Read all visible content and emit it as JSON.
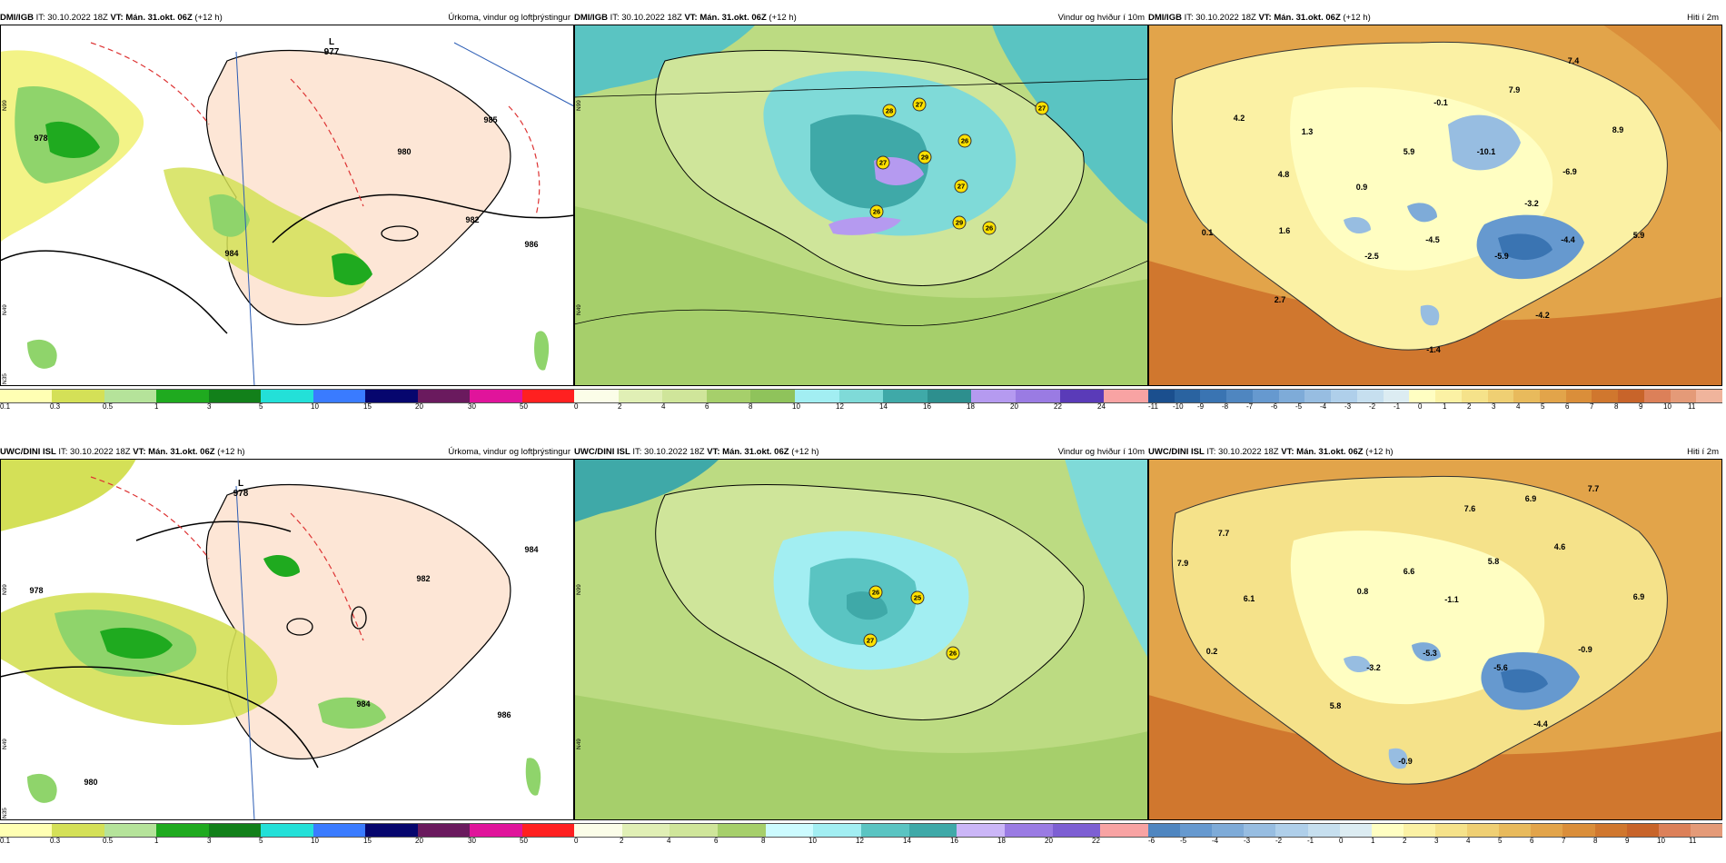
{
  "colors": {
    "precip_scale": [
      "#ffffb3",
      "#f2f27a",
      "#d4e057",
      "#b5e39a",
      "#8fd46b",
      "#1faa1f",
      "#12801a",
      "#0b5e3c",
      "#23e0d8",
      "#3a7bff",
      "#2c3ab8",
      "#06066e",
      "#6a1a5e",
      "#8e1a7c",
      "#e0149b",
      "#ff2020"
    ],
    "wind_scale": [
      "#fbfde8",
      "#eef6cf",
      "#e0efb5",
      "#cfe59a",
      "#bcdb82",
      "#a6cf6b",
      "#8fc35b",
      "#ccfbff",
      "#a2eef2",
      "#7fdad8",
      "#5ac4c2",
      "#3fa9a8",
      "#2d8f8e",
      "#cbb6f7",
      "#b59af0",
      "#9a7be3",
      "#7d5fd3",
      "#5a3bb8",
      "#f8a3a3"
    ],
    "temp_scale_top": [
      "#1b4f8e",
      "#2a63a0",
      "#3a74b2",
      "#4f86c0",
      "#6699cf",
      "#7eabd8",
      "#97bde1",
      "#afcfea",
      "#c6dfef",
      "#dcecf2",
      "#fffec2",
      "#fbf1a4",
      "#f5e28a",
      "#efcf73",
      "#e8ba5c",
      "#e2a44a",
      "#da8e3a",
      "#d0772e",
      "#c8642a",
      "#dc8059",
      "#e49a78",
      "#f0b49c"
    ],
    "temp_scale_bottom": [
      "#4f86c0",
      "#6699cf",
      "#7eabd8",
      "#97bde1",
      "#afcfea",
      "#c6dfef",
      "#dcecf2",
      "#fffec2",
      "#fbf1a4",
      "#f5e28a",
      "#efcf73",
      "#e8ba5c",
      "#e2a44a",
      "#da8e3a",
      "#d0772e",
      "#c8642a",
      "#dc8059",
      "#e49a78"
    ]
  },
  "panels": {
    "p1": {
      "source": "DMI/IGB",
      "it": "IT: 30.10.2022 18Z",
      "vt": "VT: Mán. 31.okt. 06Z",
      "lead": "(+12 h)",
      "title": "Úrkoma, vindur og loftþrýstingur",
      "low": {
        "letter": "L",
        "value": "977"
      },
      "isobars": [
        "978",
        "986",
        "985",
        "982",
        "980",
        "984"
      ],
      "lat_labels": [
        "N99",
        "N49",
        "N35"
      ],
      "ticks": [
        "0.1",
        "0.3",
        "0.5",
        "1",
        "3",
        "5",
        "10",
        "15",
        "20",
        "30",
        "50"
      ]
    },
    "p2": {
      "source": "DMI/IGB",
      "it": "IT: 30.10.2022 18Z",
      "vt": "VT: Mán. 31.okt. 06Z",
      "lead": "(+12 h)",
      "title": "Vindur og hviður í 10m",
      "gusts": [
        "27",
        "28",
        "27",
        "29",
        "26",
        "27",
        "27",
        "26",
        "29",
        "26"
      ],
      "lat_labels": [
        "N99",
        "N49"
      ],
      "ticks": [
        "0",
        "2",
        "4",
        "6",
        "8",
        "10",
        "12",
        "14",
        "16",
        "18",
        "20",
        "22",
        "24"
      ]
    },
    "p3": {
      "source": "DMI/IGB",
      "it": "IT: 30.10.2022 18Z",
      "vt": "VT: Mán. 31.okt. 06Z",
      "lead": "(+12 h)",
      "title": "Hiti í 2m",
      "temps": [
        "7.4",
        "4.2",
        "1.3",
        "-0.1",
        "7.9",
        "8.9",
        "5.9",
        "-10.1",
        "4.8",
        "0.9",
        "-6.9",
        "-3.2",
        "0.1",
        "1.6",
        "-4.5",
        "-2.5",
        "-5.9",
        "-4.4",
        "5.9",
        "2.7",
        "-4.2",
        "-1.4"
      ],
      "ticks": [
        "-11",
        "-10",
        "-9",
        "-8",
        "-7",
        "-6",
        "-5",
        "-4",
        "-3",
        "-2",
        "-1",
        "0",
        "1",
        "2",
        "3",
        "4",
        "5",
        "6",
        "7",
        "8",
        "9",
        "10",
        "11"
      ]
    },
    "p4": {
      "source": "UWC/DINI ISL",
      "it": "IT: 30.10.2022 18Z",
      "vt": "VT: Mán. 31.okt. 06Z",
      "lead": "(+12 h)",
      "title": "Úrkoma, vindur og loftþrýstingur",
      "low": {
        "letter": "L",
        "value": "978"
      },
      "isobars": [
        "978",
        "982",
        "984",
        "984",
        "986",
        "980"
      ],
      "lat_labels": [
        "N99",
        "N49",
        "N35"
      ],
      "ticks": [
        "0.1",
        "0.3",
        "0.5",
        "1",
        "3",
        "5",
        "10",
        "15",
        "20",
        "30",
        "50"
      ]
    },
    "p5": {
      "source": "UWC/DINI ISL",
      "it": "IT: 30.10.2022 18Z",
      "vt": "VT: Mán. 31.okt. 06Z",
      "lead": "(+12 h)",
      "title": "Vindur og hviður í 10m",
      "gusts": [
        "26",
        "25",
        "27",
        "26"
      ],
      "lat_labels": [
        "N99",
        "N49"
      ],
      "ticks": [
        "0",
        "2",
        "4",
        "6",
        "8",
        "10",
        "12",
        "14",
        "16",
        "18",
        "20",
        "22"
      ]
    },
    "p6": {
      "source": "UWC/DINI ISL",
      "it": "IT: 30.10.2022 18Z",
      "vt": "VT: Mán. 31.okt. 06Z",
      "lead": "(+12 h)",
      "title": "Hiti í 2m",
      "temps": [
        "7.6",
        "6.9",
        "7.7",
        "7.7",
        "7.9",
        "4.6",
        "5.8",
        "6.6",
        "0.8",
        "6.1",
        "-1.1",
        "6.9",
        "0.2",
        "-5.3",
        "-3.2",
        "-5.6",
        "-0.9",
        "5.8",
        "-4.4",
        "-0.9"
      ],
      "ticks": [
        "-6",
        "-5",
        "-4",
        "-3",
        "-2",
        "-1",
        "0",
        "1",
        "2",
        "3",
        "4",
        "5",
        "6",
        "7",
        "8",
        "9",
        "10",
        "11"
      ]
    }
  }
}
